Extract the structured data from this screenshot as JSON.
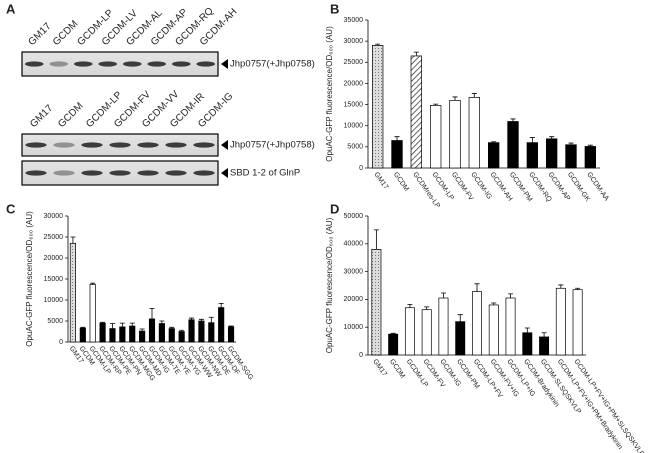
{
  "blot_panel": {
    "panel_label": "A",
    "blots": [
      {
        "lanes": [
          "GM17",
          "GCDM",
          "GCDM-LP",
          "GCDM-LV",
          "GCDM-AL",
          "GCDM-AP",
          "GCDM-RQ",
          "GCDM-AH"
        ],
        "bands": [
          "Jhp0757(+Jhp0758)"
        ]
      },
      {
        "lanes": [
          "GM17",
          "GCDM",
          "GCDM-LP",
          "GCDM-FV",
          "GCDM-VV",
          "GCDM-IR",
          "GCDM-IG"
        ],
        "bands": [
          "Jhp0757(+Jhp0758)",
          "SBD 1-2 of GlnP"
        ]
      }
    ]
  },
  "chart_data": [
    {
      "type": "bar",
      "panel_label": "B",
      "ylabel": "OpuAC-GFP fluorescence/OD₆₀₀ (AU)",
      "categories": [
        "GM17",
        "GCDM",
        "GCDMres-LP",
        "GCDM-LP",
        "GCDM-FV",
        "GCDM-IG",
        "GCDM-AH",
        "GCDM-PM",
        "GCDM-RQ",
        "GCDM-AP",
        "GCDM-GK",
        "GCDM-AA"
      ],
      "values": [
        29000,
        6500,
        26500,
        14800,
        16000,
        16700,
        6000,
        11000,
        6000,
        6900,
        5500,
        5100
      ],
      "errors": [
        300,
        900,
        900,
        300,
        800,
        900,
        200,
        600,
        1200,
        500,
        400,
        300
      ],
      "fills": [
        "dotted",
        "black",
        "hatched",
        "white",
        "white",
        "white",
        "black",
        "black",
        "black",
        "black",
        "black",
        "black"
      ],
      "ylim": [
        0,
        35000
      ],
      "yticks": [
        0,
        5000,
        10000,
        15000,
        20000,
        25000,
        30000,
        35000
      ]
    },
    {
      "type": "bar",
      "panel_label": "C",
      "ylabel": "OpuAC-GFP fluorescence/OD₆₀₀ (AU)",
      "categories": [
        "GM17",
        "GCDM",
        "GCDM-LP",
        "GCDM-RP",
        "GCDM-PE",
        "GCDM-PN",
        "GCDM-MGG",
        "GCDM-MD",
        "GCDM-IG",
        "GCDM-TE",
        "GCDM-YE",
        "GCDM-YG",
        "GCDM-WW",
        "GCDM-NW",
        "GCDM-DE",
        "GCDM-DF",
        "GCDM-SGG"
      ],
      "values": [
        23500,
        3300,
        13700,
        4500,
        3200,
        3600,
        3800,
        2600,
        5500,
        4400,
        3200,
        2500,
        5300,
        5000,
        4600,
        8200,
        3600
      ],
      "errors": [
        1500,
        200,
        300,
        200,
        1200,
        900,
        700,
        500,
        2500,
        600,
        300,
        300,
        400,
        400,
        1300,
        1000,
        200
      ],
      "fills": [
        "dotted",
        "black",
        "white",
        "black",
        "black",
        "black",
        "black",
        "black",
        "black",
        "black",
        "black",
        "black",
        "black",
        "black",
        "black",
        "black",
        "black"
      ],
      "ylim": [
        0,
        30000
      ],
      "yticks": [
        0,
        5000,
        10000,
        15000,
        20000,
        25000,
        30000
      ]
    },
    {
      "type": "bar",
      "panel_label": "D",
      "ylabel": "OpuAC-GFP fluorescence/OD₆₀₀ (AU)",
      "categories": [
        "GM17",
        "GCDM",
        "GCDM-LP",
        "GCDM-FV",
        "GCDM-IG",
        "GCDM-PM",
        "GCDM-LP+FV",
        "GCDM-FV+IG",
        "GCDM-LP+IG",
        "GCDM-Bradykinin",
        "GCDM-SLSQSKVLP",
        "GCDM-LP+FV+IG+PM+Bradykinin",
        "GCDM-LP+FV+IG+PM+SLSQSKVLP"
      ],
      "values": [
        38000,
        7500,
        17000,
        16300,
        20500,
        12000,
        22800,
        18000,
        20500,
        8000,
        6500,
        24000,
        23500
      ],
      "errors": [
        7000,
        300,
        1200,
        1000,
        1800,
        2500,
        2800,
        700,
        1500,
        1700,
        1500,
        1200,
        500
      ],
      "fills": [
        "dotted",
        "black",
        "white",
        "white",
        "white",
        "black",
        "white",
        "white",
        "white",
        "black",
        "black",
        "white",
        "white"
      ],
      "ylim": [
        0,
        50000
      ],
      "yticks": [
        0,
        10000,
        20000,
        30000,
        40000,
        50000
      ]
    }
  ]
}
